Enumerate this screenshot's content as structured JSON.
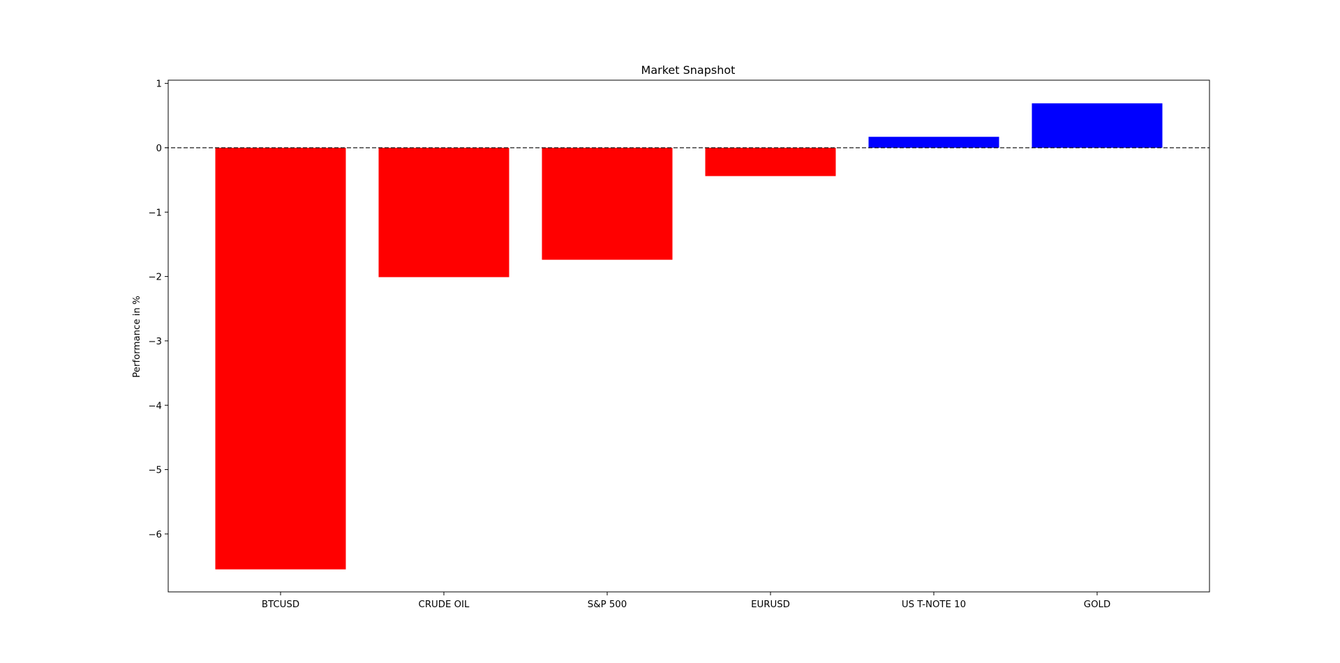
{
  "chart_data": {
    "type": "bar",
    "title": "Market Snapshot",
    "xlabel": "",
    "ylabel": "Performance in %",
    "categories": [
      "BTCUSD",
      "CRUDE OIL",
      "S&P 500",
      "EURUSD",
      "US T-NOTE 10",
      "GOLD"
    ],
    "values": [
      -6.55,
      -2.01,
      -1.74,
      -0.44,
      0.17,
      0.69
    ],
    "ylim": [
      -6.9,
      1.05
    ],
    "yticks": [
      1,
      0,
      -1,
      -2,
      -3,
      -4,
      -5,
      -6
    ],
    "grid": false,
    "zero_line": "dashed",
    "colors": {
      "positive": "#0000ff",
      "negative": "#ff0000",
      "axis": "#000000"
    }
  }
}
